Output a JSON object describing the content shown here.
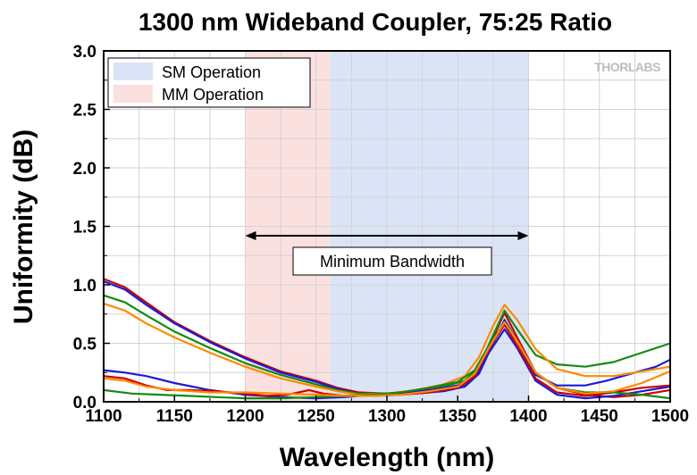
{
  "chart_data": {
    "type": "line",
    "title": "1300 nm Wideband Coupler, 75:25 Ratio",
    "xlabel": "Wavelength (nm)",
    "ylabel": "Uniformity (dB)",
    "xlim": [
      1100,
      1500
    ],
    "ylim": [
      0.0,
      3.0
    ],
    "x_ticks": [
      1100,
      1150,
      1200,
      1250,
      1300,
      1350,
      1400,
      1450,
      1500
    ],
    "y_ticks": [
      0.0,
      0.5,
      1.0,
      1.5,
      2.0,
      2.5,
      3.0
    ],
    "x_tick_labels": [
      "1100",
      "1150",
      "1200",
      "1250",
      "1300",
      "1350",
      "1400",
      "1450",
      "1500"
    ],
    "y_tick_labels": [
      "0.0",
      "0.5",
      "1.0",
      "1.5",
      "2.0",
      "2.5",
      "3.0"
    ],
    "grid": true,
    "legend_position": "top-left",
    "bands": [
      {
        "label": "SM Operation",
        "x_start": 1260,
        "x_end": 1400,
        "color": "#dbe4f6"
      },
      {
        "label": "MM Operation",
        "x_start": 1200,
        "x_end": 1260,
        "color": "#fbe0e0"
      }
    ],
    "annotation": {
      "label": "Minimum Bandwidth",
      "x_start": 1200,
      "x_end": 1400,
      "y": 1.42
    },
    "logo": "THORLABS",
    "series": [
      {
        "color": "#cc0000",
        "points": [
          [
            1100,
            1.05
          ],
          [
            1115,
            0.98
          ],
          [
            1130,
            0.85
          ],
          [
            1150,
            0.68
          ],
          [
            1175,
            0.52
          ],
          [
            1200,
            0.38
          ],
          [
            1225,
            0.26
          ],
          [
            1250,
            0.18
          ],
          [
            1265,
            0.12
          ],
          [
            1280,
            0.08
          ],
          [
            1300,
            0.07
          ],
          [
            1320,
            0.08
          ],
          [
            1340,
            0.1
          ],
          [
            1355,
            0.14
          ],
          [
            1365,
            0.25
          ],
          [
            1375,
            0.55
          ],
          [
            1383,
            0.76
          ],
          [
            1392,
            0.55
          ],
          [
            1405,
            0.25
          ],
          [
            1420,
            0.12
          ],
          [
            1440,
            0.06
          ],
          [
            1460,
            0.04
          ],
          [
            1480,
            0.06
          ],
          [
            1500,
            0.1
          ]
        ]
      },
      {
        "color": "#1a1adb",
        "points": [
          [
            1100,
            1.03
          ],
          [
            1115,
            0.96
          ],
          [
            1130,
            0.83
          ],
          [
            1150,
            0.67
          ],
          [
            1175,
            0.51
          ],
          [
            1200,
            0.37
          ],
          [
            1225,
            0.25
          ],
          [
            1250,
            0.17
          ],
          [
            1265,
            0.11
          ],
          [
            1280,
            0.07
          ],
          [
            1300,
            0.06
          ],
          [
            1320,
            0.07
          ],
          [
            1340,
            0.09
          ],
          [
            1355,
            0.13
          ],
          [
            1365,
            0.24
          ],
          [
            1375,
            0.5
          ],
          [
            1383,
            0.7
          ],
          [
            1392,
            0.52
          ],
          [
            1405,
            0.23
          ],
          [
            1420,
            0.14
          ],
          [
            1440,
            0.14
          ],
          [
            1455,
            0.18
          ],
          [
            1475,
            0.25
          ],
          [
            1490,
            0.3
          ],
          [
            1500,
            0.36
          ]
        ]
      },
      {
        "color": "#138a13",
        "points": [
          [
            1100,
            0.91
          ],
          [
            1115,
            0.85
          ],
          [
            1130,
            0.74
          ],
          [
            1150,
            0.6
          ],
          [
            1175,
            0.46
          ],
          [
            1200,
            0.33
          ],
          [
            1225,
            0.23
          ],
          [
            1250,
            0.15
          ],
          [
            1265,
            0.1
          ],
          [
            1280,
            0.07
          ],
          [
            1300,
            0.07
          ],
          [
            1320,
            0.09
          ],
          [
            1340,
            0.13
          ],
          [
            1355,
            0.18
          ],
          [
            1365,
            0.3
          ],
          [
            1375,
            0.57
          ],
          [
            1383,
            0.78
          ],
          [
            1392,
            0.62
          ],
          [
            1405,
            0.4
          ],
          [
            1420,
            0.32
          ],
          [
            1440,
            0.3
          ],
          [
            1460,
            0.34
          ],
          [
            1480,
            0.42
          ],
          [
            1500,
            0.5
          ]
        ]
      },
      {
        "color": "#ff8800",
        "points": [
          [
            1100,
            0.84
          ],
          [
            1115,
            0.78
          ],
          [
            1130,
            0.67
          ],
          [
            1150,
            0.55
          ],
          [
            1175,
            0.42
          ],
          [
            1200,
            0.3
          ],
          [
            1225,
            0.2
          ],
          [
            1250,
            0.13
          ],
          [
            1265,
            0.09
          ],
          [
            1280,
            0.06
          ],
          [
            1300,
            0.07
          ],
          [
            1320,
            0.1
          ],
          [
            1340,
            0.15
          ],
          [
            1355,
            0.22
          ],
          [
            1365,
            0.38
          ],
          [
            1375,
            0.65
          ],
          [
            1383,
            0.83
          ],
          [
            1392,
            0.7
          ],
          [
            1405,
            0.45
          ],
          [
            1420,
            0.28
          ],
          [
            1440,
            0.22
          ],
          [
            1460,
            0.22
          ],
          [
            1480,
            0.26
          ],
          [
            1500,
            0.3
          ]
        ]
      },
      {
        "color": "#1a1adb",
        "points": [
          [
            1100,
            0.27
          ],
          [
            1115,
            0.25
          ],
          [
            1130,
            0.22
          ],
          [
            1150,
            0.16
          ],
          [
            1175,
            0.1
          ],
          [
            1200,
            0.06
          ],
          [
            1225,
            0.04
          ],
          [
            1250,
            0.03
          ],
          [
            1270,
            0.04
          ],
          [
            1290,
            0.06
          ],
          [
            1310,
            0.08
          ],
          [
            1330,
            0.1
          ],
          [
            1350,
            0.14
          ],
          [
            1362,
            0.22
          ],
          [
            1372,
            0.42
          ],
          [
            1383,
            0.62
          ],
          [
            1392,
            0.46
          ],
          [
            1405,
            0.18
          ],
          [
            1420,
            0.06
          ],
          [
            1440,
            0.03
          ],
          [
            1460,
            0.05
          ],
          [
            1480,
            0.09
          ],
          [
            1500,
            0.13
          ]
        ]
      },
      {
        "color": "#cc0000",
        "points": [
          [
            1100,
            0.22
          ],
          [
            1115,
            0.2
          ],
          [
            1130,
            0.14
          ],
          [
            1145,
            0.1
          ],
          [
            1160,
            0.1
          ],
          [
            1180,
            0.09
          ],
          [
            1200,
            0.07
          ],
          [
            1215,
            0.05
          ],
          [
            1230,
            0.06
          ],
          [
            1245,
            0.1
          ],
          [
            1255,
            0.07
          ],
          [
            1270,
            0.05
          ],
          [
            1290,
            0.05
          ],
          [
            1310,
            0.06
          ],
          [
            1330,
            0.08
          ],
          [
            1350,
            0.12
          ],
          [
            1362,
            0.22
          ],
          [
            1372,
            0.45
          ],
          [
            1383,
            0.66
          ],
          [
            1392,
            0.48
          ],
          [
            1405,
            0.2
          ],
          [
            1420,
            0.08
          ],
          [
            1440,
            0.05
          ],
          [
            1460,
            0.08
          ],
          [
            1480,
            0.12
          ],
          [
            1500,
            0.14
          ]
        ]
      },
      {
        "color": "#138a13",
        "points": [
          [
            1100,
            0.1
          ],
          [
            1120,
            0.07
          ],
          [
            1140,
            0.06
          ],
          [
            1160,
            0.05
          ],
          [
            1180,
            0.04
          ],
          [
            1200,
            0.03
          ],
          [
            1225,
            0.03
          ],
          [
            1250,
            0.04
          ],
          [
            1270,
            0.05
          ],
          [
            1290,
            0.06
          ],
          [
            1310,
            0.08
          ],
          [
            1330,
            0.12
          ],
          [
            1350,
            0.17
          ],
          [
            1362,
            0.27
          ],
          [
            1372,
            0.48
          ],
          [
            1383,
            0.68
          ],
          [
            1392,
            0.52
          ],
          [
            1405,
            0.25
          ],
          [
            1420,
            0.12
          ],
          [
            1440,
            0.08
          ],
          [
            1460,
            0.08
          ],
          [
            1480,
            0.06
          ],
          [
            1500,
            0.03
          ]
        ]
      },
      {
        "color": "#ff8800",
        "points": [
          [
            1100,
            0.2
          ],
          [
            1115,
            0.18
          ],
          [
            1130,
            0.13
          ],
          [
            1150,
            0.1
          ],
          [
            1175,
            0.08
          ],
          [
            1200,
            0.08
          ],
          [
            1225,
            0.07
          ],
          [
            1250,
            0.06
          ],
          [
            1270,
            0.05
          ],
          [
            1290,
            0.05
          ],
          [
            1310,
            0.06
          ],
          [
            1330,
            0.09
          ],
          [
            1350,
            0.13
          ],
          [
            1362,
            0.24
          ],
          [
            1372,
            0.46
          ],
          [
            1383,
            0.68
          ],
          [
            1392,
            0.52
          ],
          [
            1405,
            0.25
          ],
          [
            1420,
            0.12
          ],
          [
            1440,
            0.07
          ],
          [
            1460,
            0.09
          ],
          [
            1480,
            0.16
          ],
          [
            1500,
            0.26
          ]
        ]
      }
    ]
  }
}
